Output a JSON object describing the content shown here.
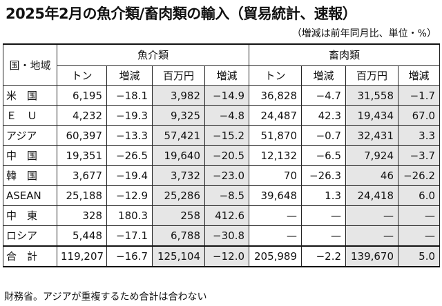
{
  "title": "2025年2月の魚介類/畜肉類の輸入（貿易統計、速報）",
  "unit_note": "（増減は前年同月比、単位・%）",
  "table": {
    "region_header": "国・地域",
    "groups": [
      "魚介類",
      "畜肉類"
    ],
    "sub_headers": [
      "トン",
      "増減",
      "百万円",
      "増減",
      "トン",
      "増減",
      "百万円",
      "増減"
    ],
    "rows": [
      {
        "region": "米　国",
        "cells": [
          "6,195",
          "−18.1",
          "3,982",
          "−14.9",
          "36,828",
          "−4.7",
          "31,558",
          "−1.7"
        ]
      },
      {
        "region": "Ｅ　Ｕ",
        "cells": [
          "4,232",
          "−19.3",
          "9,325",
          "−4.8",
          "24,487",
          "42.3",
          "19,434",
          "67.0"
        ]
      },
      {
        "region": "アジア",
        "cells": [
          "60,397",
          "−13.3",
          "57,421",
          "−15.2",
          "51,870",
          "−0.7",
          "32,431",
          "3.3"
        ]
      },
      {
        "region": "中　国",
        "cells": [
          "19,351",
          "−26.5",
          "19,640",
          "−20.5",
          "12,132",
          "−6.5",
          "7,924",
          "−3.7"
        ]
      },
      {
        "region": "韓　国",
        "cells": [
          "3,677",
          "−19.4",
          "3,732",
          "−23.0",
          "70",
          "−26.3",
          "46",
          "−26.2"
        ]
      },
      {
        "region": "ASEAN",
        "cells": [
          "25,188",
          "−12.9",
          "25,286",
          "−8.5",
          "39,648",
          "1.3",
          "24,418",
          "6.0"
        ]
      },
      {
        "region": "中　東",
        "cells": [
          "328",
          "180.3",
          "258",
          "412.6",
          "—",
          "—",
          "—",
          "—"
        ]
      },
      {
        "region": "ロシア",
        "cells": [
          "5,448",
          "−17.1",
          "6,788",
          "−30.8",
          "—",
          "—",
          "—",
          "—"
        ]
      },
      {
        "region": "合　計",
        "cells": [
          "119,207",
          "−16.7",
          "125,104",
          "−12.0",
          "205,989",
          "−2.2",
          "139,670",
          "5.0"
        ]
      }
    ]
  },
  "footnote": "財務省。アジアが重複するため合計は合わない",
  "colors": {
    "shade": "#e6e6e6",
    "border": "#222222"
  }
}
